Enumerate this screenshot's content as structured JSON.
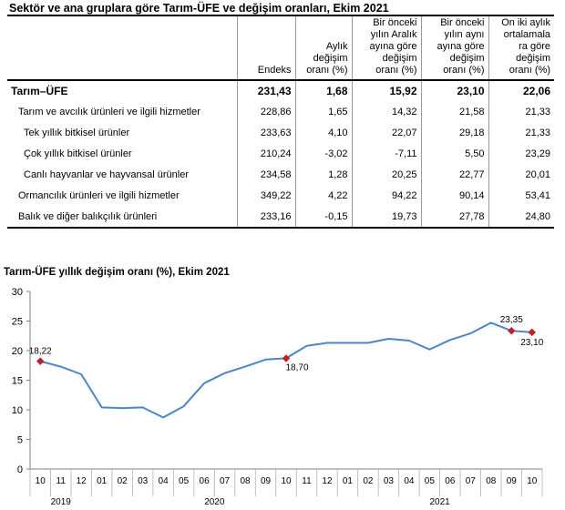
{
  "table": {
    "title": "Sektör ve ana gruplara göre Tarım-ÜFE ve değişim oranları, Ekim 2021",
    "headers": [
      [
        "",
        ""
      ],
      [
        "Endeks"
      ],
      [
        "Aylık",
        "değişim",
        "oranı (%)"
      ],
      [
        "Bir önceki",
        "yılın Aralık",
        "ayına göre",
        "değişim",
        "oranı (%)"
      ],
      [
        "Bir önceki",
        "yılın aynı",
        "ayına göre",
        "değişim",
        "oranı (%)"
      ],
      [
        "On iki aylık",
        "ortalamala",
        "ra göre",
        "değişim",
        "oranı (%)"
      ]
    ],
    "rows": [
      {
        "label": "Tarım–ÜFE",
        "level": "main",
        "values": [
          "231,43",
          "1,68",
          "15,92",
          "23,10",
          "22,06"
        ]
      },
      {
        "label": "Tarım ve avcılık ürünleri ve ilgili hizmetler",
        "level": "l1",
        "values": [
          "228,86",
          "1,65",
          "14,32",
          "21,58",
          "21,33"
        ]
      },
      {
        "label": "Tek yıllık bitkisel ürünler",
        "level": "l2",
        "values": [
          "233,63",
          "4,10",
          "22,07",
          "29,18",
          "21,33"
        ]
      },
      {
        "label": "Çok yıllık bitkisel ürünler",
        "level": "l2",
        "values": [
          "210,24",
          "-3,02",
          "-7,11",
          "5,50",
          "23,29"
        ]
      },
      {
        "label": "Canlı hayvanlar ve hayvansal ürünler",
        "level": "l2",
        "values": [
          "234,58",
          "1,28",
          "20,25",
          "22,77",
          "20,01"
        ]
      },
      {
        "label": "Ormancılık ürünleri ve ilgili hizmetler",
        "level": "l1",
        "values": [
          "349,22",
          "4,22",
          "94,22",
          "90,14",
          "53,41"
        ]
      },
      {
        "label": "Balık ve diğer balıkçılık ürünleri",
        "level": "l1",
        "values": [
          "233,16",
          "-0,15",
          "19,73",
          "27,78",
          "24,80"
        ]
      }
    ]
  },
  "chart_data": {
    "type": "line",
    "title": "Tarım-ÜFE yıllık değişim oranı (%), Ekim 2021",
    "x": [
      "10",
      "11",
      "12",
      "01",
      "02",
      "03",
      "04",
      "05",
      "06",
      "07",
      "08",
      "09",
      "10",
      "11",
      "12",
      "01",
      "02",
      "03",
      "04",
      "05",
      "06",
      "07",
      "08",
      "09",
      "10"
    ],
    "year_groups": [
      {
        "label": "2019",
        "start": 0,
        "end": 2
      },
      {
        "label": "2020",
        "start": 3,
        "end": 14
      },
      {
        "label": "2021",
        "start": 15,
        "end": 24
      }
    ],
    "series": [
      {
        "values": [
          18.22,
          17.3,
          16.0,
          10.4,
          10.3,
          10.4,
          8.7,
          10.6,
          14.5,
          16.2,
          17.3,
          18.5,
          18.7,
          20.8,
          21.3,
          21.3,
          21.3,
          22.0,
          21.7,
          20.2,
          21.8,
          22.9,
          24.7,
          23.35,
          23.1
        ]
      }
    ],
    "annotations": [
      {
        "index": 0,
        "label": "18,22"
      },
      {
        "index": 12,
        "label": "18,70"
      },
      {
        "index": 23,
        "label": "23,35"
      },
      {
        "index": 24,
        "label": "23,10"
      }
    ],
    "ylim": [
      0,
      30
    ],
    "yticks": [
      0,
      5,
      10,
      15,
      20,
      25,
      30
    ],
    "grid": false,
    "line_color": "#4a86c8",
    "marker_color": "#c0202a",
    "axis_color": "#808080"
  }
}
